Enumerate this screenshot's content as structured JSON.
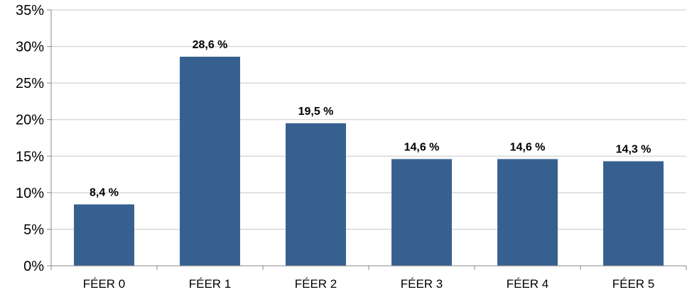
{
  "chart_data": {
    "type": "bar",
    "categories": [
      "FÉER 0",
      "FÉER 1",
      "FÉER 2",
      "FÉER 3",
      "FÉER 4",
      "FÉER 5"
    ],
    "values": [
      8.4,
      28.6,
      19.5,
      14.6,
      14.6,
      14.3
    ],
    "data_labels": [
      "8,4 %",
      "28,6 %",
      "19,5 %",
      "14,6 %",
      "14,6 %",
      "14,3 %"
    ],
    "y_ticks": [
      0,
      5,
      10,
      15,
      20,
      25,
      30,
      35
    ],
    "y_tick_labels": [
      "0%",
      "5%",
      "10%",
      "15%",
      "20%",
      "25%",
      "30%",
      "35%"
    ],
    "ylim": [
      0,
      35
    ],
    "grid": true,
    "legend": "none",
    "bar_color": "#36608f"
  }
}
